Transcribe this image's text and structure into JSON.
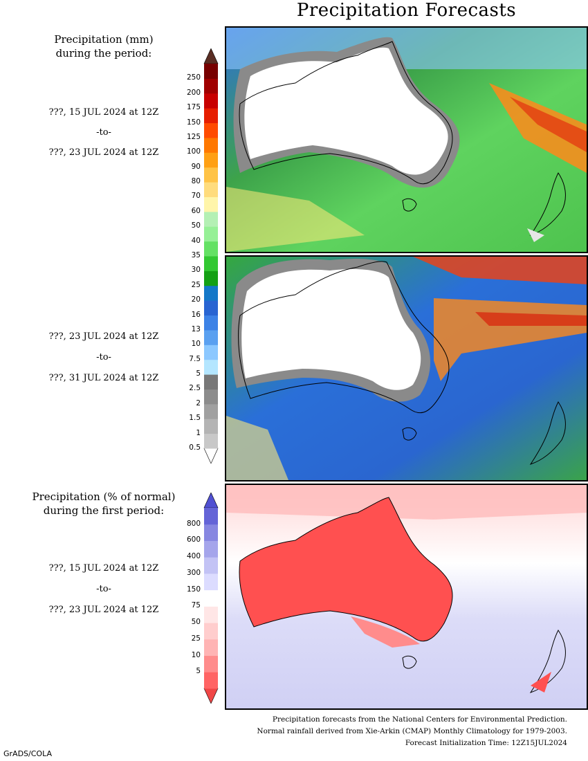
{
  "title": "Precipitation Forecasts",
  "amount_legend": {
    "header_line1": "Precipitation (mm)",
    "header_line2": "during the period:",
    "labels": [
      "0.5",
      "1",
      "1.5",
      "2",
      "2.5",
      "5",
      "7.5",
      "10",
      "13",
      "16",
      "20",
      "25",
      "30",
      "35",
      "40",
      "50",
      "60",
      "70",
      "80",
      "90",
      "100",
      "125",
      "150",
      "175",
      "200",
      "250"
    ],
    "colors": [
      "#c8c8c8",
      "#b4b4b4",
      "#a0a0a0",
      "#8c8c8c",
      "#787878",
      "#b4e6ff",
      "#8cc8ff",
      "#5aa0f0",
      "#3c82e6",
      "#2864d2",
      "#1478c8",
      "#14a014",
      "#32c832",
      "#64e164",
      "#96f096",
      "#b4f0b4",
      "#fff5aa",
      "#ffdc7d",
      "#ffc346",
      "#ffa014",
      "#ff7800",
      "#ff4b00",
      "#e61e00",
      "#c80000",
      "#a00000",
      "#780000"
    ],
    "low_arrow_color": "#ffffff",
    "high_arrow_color": "#5a2d23"
  },
  "period1": {
    "start": "???, 15 JUL 2024 at 12Z",
    "mid": "-to-",
    "end": "???, 23 JUL 2024 at 12Z"
  },
  "period2": {
    "start": "???, 23 JUL 2024 at 12Z",
    "mid": "-to-",
    "end": "???, 31 JUL 2024 at 12Z"
  },
  "percent_legend": {
    "header_line1": "Precipitation (% of normal)",
    "header_line2": "during the first period:",
    "labels": [
      "5",
      "10",
      "25",
      "50",
      "75",
      "150",
      "300",
      "400",
      "600",
      "800"
    ],
    "colors": [
      "#ff6464",
      "#ff8c8c",
      "#ffb4b4",
      "#ffcdcd",
      "#ffe6e6",
      "#ffffff",
      "#dcdcff",
      "#c3c3f5",
      "#a5a5eb",
      "#8787e1",
      "#6464d7"
    ],
    "low_arrow_color": "#f04646",
    "high_arrow_color": "#5050d2"
  },
  "period3": {
    "start": "???, 15 JUL 2024 at 12Z",
    "mid": "-to-",
    "end": "???, 23 JUL 2024 at 12Z"
  },
  "footer": {
    "line1": "Precipitation forecasts from the National Centers for Environmental Prediction.",
    "line2": "Normal rainfall derived from Xie-Arkin (CMAP) Monthly Climatology for 1979-2003.",
    "line3": "Forecast Initialization Time: 12Z15JUL2024"
  },
  "credit": "GrADS/COLA"
}
